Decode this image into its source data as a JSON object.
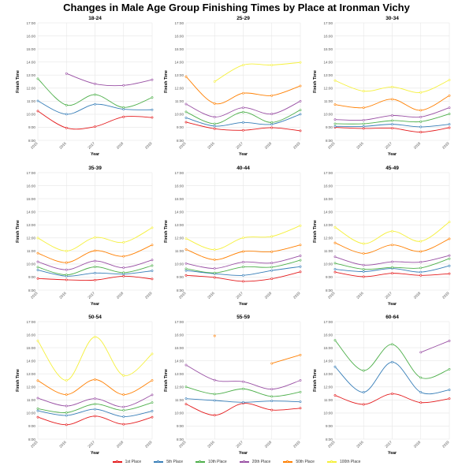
{
  "title": "Changes in Male Age Group Finishing Times by Place at Ironman Vichy",
  "chart_data": [
    {
      "type": "line",
      "title": "18-24",
      "xlabel": "Year",
      "ylabel": "Finish Time",
      "x": [
        "2015",
        "2016",
        "2017",
        "2018",
        "2019"
      ],
      "yticks": [
        "8:00",
        "9:00",
        "10:00",
        "11:00",
        "12:00",
        "13:00",
        "14:00",
        "15:00",
        "16:00",
        "17:00"
      ],
      "ylim": [
        8,
        17
      ],
      "y_unit": "hours",
      "series": [
        {
          "name": "1st Place",
          "values": [
            10.24,
            8.95,
            9.05,
            9.8,
            9.75
          ]
        },
        {
          "name": "5th Place",
          "values": [
            11.02,
            10.0,
            10.76,
            10.38,
            10.34
          ]
        },
        {
          "name": "10th Place",
          "values": [
            12.72,
            10.7,
            11.5,
            10.52,
            11.28
          ]
        },
        {
          "name": "20th Place",
          "values": [
            null,
            13.12,
            12.33,
            12.21,
            12.64
          ]
        },
        {
          "name": "50th Place",
          "values": [
            null,
            null,
            null,
            null,
            null
          ]
        },
        {
          "name": "100th Place",
          "values": [
            null,
            null,
            null,
            null,
            null
          ]
        }
      ]
    },
    {
      "type": "line",
      "title": "25-29",
      "xlabel": "Year",
      "ylabel": "Finish Time",
      "x": [
        "2015",
        "2016",
        "2017",
        "2018",
        "2019"
      ],
      "yticks": [
        "8:00",
        "9:00",
        "10:00",
        "11:00",
        "12:00",
        "13:00",
        "14:00",
        "15:00",
        "16:00",
        "17:00"
      ],
      "ylim": [
        8,
        17
      ],
      "y_unit": "hours",
      "series": [
        {
          "name": "1st Place",
          "values": [
            9.39,
            8.89,
            8.77,
            8.97,
            8.73
          ]
        },
        {
          "name": "5th Place",
          "values": [
            9.73,
            9.09,
            9.37,
            9.23,
            10.0
          ]
        },
        {
          "name": "10th Place",
          "values": [
            10.18,
            9.27,
            10.16,
            9.37,
            10.32
          ]
        },
        {
          "name": "20th Place",
          "values": [
            10.78,
            9.79,
            10.5,
            10.02,
            11.0
          ]
        },
        {
          "name": "50th Place",
          "values": [
            12.88,
            10.82,
            11.61,
            11.43,
            12.17
          ]
        },
        {
          "name": "100th Place",
          "values": [
            null,
            12.5,
            13.77,
            13.77,
            13.97
          ]
        }
      ]
    },
    {
      "type": "line",
      "title": "30-34",
      "xlabel": "Year",
      "ylabel": "Finish Time",
      "x": [
        "2015",
        "2016",
        "2017",
        "2018",
        "2019"
      ],
      "yticks": [
        "8:00",
        "9:00",
        "10:00",
        "11:00",
        "12:00",
        "13:00",
        "14:00",
        "15:00",
        "16:00",
        "17:00"
      ],
      "ylim": [
        8,
        17
      ],
      "y_unit": "hours",
      "series": [
        {
          "name": "1st Place",
          "values": [
            8.99,
            8.91,
            8.93,
            8.63,
            8.97
          ]
        },
        {
          "name": "5th Place",
          "values": [
            9.07,
            9.07,
            9.23,
            9.03,
            9.23
          ]
        },
        {
          "name": "10th Place",
          "values": [
            9.27,
            9.27,
            9.51,
            9.43,
            10.02
          ]
        },
        {
          "name": "20th Place",
          "values": [
            9.59,
            9.55,
            9.9,
            9.79,
            10.5
          ]
        },
        {
          "name": "50th Place",
          "values": [
            10.74,
            10.5,
            11.15,
            10.3,
            11.43
          ]
        },
        {
          "name": "100th Place",
          "values": [
            12.58,
            11.77,
            12.09,
            11.67,
            12.62
          ]
        }
      ]
    },
    {
      "type": "line",
      "title": "35-39",
      "xlabel": "Year",
      "ylabel": "Finish Time",
      "x": [
        "2015",
        "2016",
        "2017",
        "2018",
        "2019"
      ],
      "yticks": [
        "8:00",
        "9:00",
        "10:00",
        "11:00",
        "12:00",
        "13:00",
        "14:00",
        "15:00",
        "16:00",
        "17:00"
      ],
      "ylim": [
        8,
        17
      ],
      "y_unit": "hours",
      "series": [
        {
          "name": "1st Place",
          "values": [
            8.89,
            8.79,
            8.77,
            9.07,
            8.85
          ]
        },
        {
          "name": "5th Place",
          "values": [
            9.54,
            9.07,
            9.31,
            9.23,
            9.48
          ]
        },
        {
          "name": "10th Place",
          "values": [
            9.76,
            9.17,
            9.78,
            9.34,
            9.88
          ]
        },
        {
          "name": "20th Place",
          "values": [
            10.17,
            9.56,
            10.23,
            9.72,
            10.31
          ]
        },
        {
          "name": "50th Place",
          "values": [
            10.83,
            10.11,
            11.02,
            10.59,
            11.46
          ]
        },
        {
          "name": "100th Place",
          "values": [
            11.99,
            11.0,
            12.03,
            11.66,
            12.78
          ]
        }
      ]
    },
    {
      "type": "line",
      "title": "40-44",
      "xlabel": "Year",
      "ylabel": "Finish Time",
      "x": [
        "2015",
        "2016",
        "2017",
        "2018",
        "2019"
      ],
      "yticks": [
        "8:00",
        "9:00",
        "10:00",
        "11:00",
        "12:00",
        "13:00",
        "14:00",
        "15:00",
        "16:00",
        "17:00"
      ],
      "ylim": [
        8,
        17
      ],
      "y_unit": "hours",
      "series": [
        {
          "name": "1st Place",
          "values": [
            9.13,
            8.97,
            8.67,
            8.87,
            9.4
          ]
        },
        {
          "name": "5th Place",
          "values": [
            9.5,
            9.26,
            9.13,
            9.5,
            9.8
          ]
        },
        {
          "name": "10th Place",
          "values": [
            9.64,
            9.32,
            9.78,
            9.76,
            10.29
          ]
        },
        {
          "name": "20th Place",
          "values": [
            10.04,
            9.66,
            10.15,
            10.08,
            10.63
          ]
        },
        {
          "name": "50th Place",
          "values": [
            11.12,
            10.33,
            10.96,
            10.94,
            11.46
          ]
        },
        {
          "name": "100th Place",
          "values": [
            11.95,
            11.1,
            12.01,
            12.11,
            12.94
          ]
        }
      ]
    },
    {
      "type": "line",
      "title": "45-49",
      "xlabel": "Year",
      "ylabel": "Finish Time",
      "x": [
        "2015",
        "2016",
        "2017",
        "2018",
        "2019"
      ],
      "yticks": [
        "8:00",
        "9:00",
        "10:00",
        "11:00",
        "12:00",
        "13:00",
        "14:00",
        "15:00",
        "16:00",
        "17:00"
      ],
      "ylim": [
        8,
        17
      ],
      "y_unit": "hours",
      "series": [
        {
          "name": "1st Place",
          "values": [
            9.38,
            9.03,
            9.29,
            9.13,
            9.26
          ]
        },
        {
          "name": "5th Place",
          "values": [
            9.6,
            9.42,
            9.66,
            9.38,
            9.86
          ]
        },
        {
          "name": "10th Place",
          "values": [
            10.06,
            9.6,
            9.74,
            9.7,
            10.41
          ]
        },
        {
          "name": "20th Place",
          "values": [
            10.55,
            9.92,
            10.17,
            10.15,
            10.65
          ]
        },
        {
          "name": "50th Place",
          "values": [
            11.62,
            10.81,
            11.46,
            10.96,
            11.93
          ]
        },
        {
          "name": "100th Place",
          "values": [
            12.82,
            11.56,
            12.51,
            11.74,
            13.22
          ]
        }
      ]
    },
    {
      "type": "line",
      "title": "50-54",
      "xlabel": "Year",
      "ylabel": "Finish Time",
      "x": [
        "2015",
        "2016",
        "2017",
        "2018",
        "2019"
      ],
      "yticks": [
        "8:00",
        "9:00",
        "10:00",
        "11:00",
        "12:00",
        "13:00",
        "14:00",
        "15:00",
        "16:00",
        "17:00"
      ],
      "ylim": [
        8,
        17
      ],
      "y_unit": "hours",
      "series": [
        {
          "name": "1st Place",
          "values": [
            9.68,
            9.1,
            9.76,
            9.14,
            9.68
          ]
        },
        {
          "name": "5th Place",
          "values": [
            10.17,
            9.81,
            10.29,
            9.72,
            10.15
          ]
        },
        {
          "name": "10th Place",
          "values": [
            10.33,
            10.03,
            10.68,
            10.21,
            10.8
          ]
        },
        {
          "name": "20th Place",
          "values": [
            11.14,
            10.54,
            11.1,
            10.47,
            11.39
          ]
        },
        {
          "name": "50th Place",
          "values": [
            12.48,
            11.41,
            12.56,
            11.41,
            12.5
          ]
        },
        {
          "name": "100th Place",
          "values": [
            15.53,
            12.5,
            15.83,
            12.87,
            14.53
          ]
        }
      ]
    },
    {
      "type": "line",
      "title": "55-59",
      "xlabel": "Year",
      "ylabel": "Finish Time",
      "x": [
        "2015",
        "2016",
        "2017",
        "2018",
        "2019"
      ],
      "yticks": [
        "8:00",
        "9:00",
        "10:00",
        "11:00",
        "12:00",
        "13:00",
        "14:00",
        "15:00",
        "16:00",
        "17:00"
      ],
      "ylim": [
        8,
        17
      ],
      "y_unit": "hours",
      "series": [
        {
          "name": "1st Place",
          "values": [
            10.68,
            9.83,
            10.74,
            10.23,
            10.37
          ]
        },
        {
          "name": "5th Place",
          "values": [
            11.1,
            10.96,
            10.82,
            10.92,
            10.86
          ]
        },
        {
          "name": "10th Place",
          "values": [
            12.0,
            11.45,
            11.85,
            11.27,
            11.61
          ]
        },
        {
          "name": "20th Place",
          "values": [
            13.68,
            12.52,
            12.4,
            11.83,
            12.5
          ]
        },
        {
          "name": "50th Place",
          "values": [
            null,
            15.91,
            null,
            13.8,
            14.45
          ]
        },
        {
          "name": "100th Place",
          "values": [
            null,
            null,
            null,
            null,
            null
          ]
        }
      ]
    },
    {
      "type": "line",
      "title": "60-64",
      "xlabel": "Year",
      "ylabel": "Finish Time",
      "x": [
        "2015",
        "2016",
        "2017",
        "2018",
        "2019"
      ],
      "yticks": [
        "8:00",
        "9:00",
        "10:00",
        "11:00",
        "12:00",
        "13:00",
        "14:00",
        "15:00",
        "16:00",
        "17:00"
      ],
      "ylim": [
        8,
        17
      ],
      "y_unit": "hours",
      "series": [
        {
          "name": "1st Place",
          "values": [
            11.35,
            10.66,
            11.47,
            10.8,
            11.1
          ]
        },
        {
          "name": "5th Place",
          "values": [
            13.54,
            11.59,
            13.9,
            11.59,
            11.77
          ]
        },
        {
          "name": "10th Place",
          "values": [
            15.57,
            13.25,
            15.26,
            12.71,
            13.35
          ]
        },
        {
          "name": "20th Place",
          "values": [
            null,
            null,
            null,
            14.65,
            15.53
          ]
        },
        {
          "name": "50th Place",
          "values": [
            null,
            null,
            null,
            null,
            null
          ]
        },
        {
          "name": "100th Place",
          "values": [
            null,
            null,
            null,
            null,
            null
          ]
        }
      ]
    }
  ],
  "legend": {
    "position": "bottom",
    "items": [
      {
        "label": "1st Place",
        "color": "#e41a1c"
      },
      {
        "label": "5th Place",
        "color": "#377eb8"
      },
      {
        "label": "10th Place",
        "color": "#4daf4a"
      },
      {
        "label": "20th Place",
        "color": "#984ea3"
      },
      {
        "label": "50th Place",
        "color": "#ff7f00"
      },
      {
        "label": "100th Place",
        "color": "#f5f03a"
      }
    ]
  },
  "grid": true
}
